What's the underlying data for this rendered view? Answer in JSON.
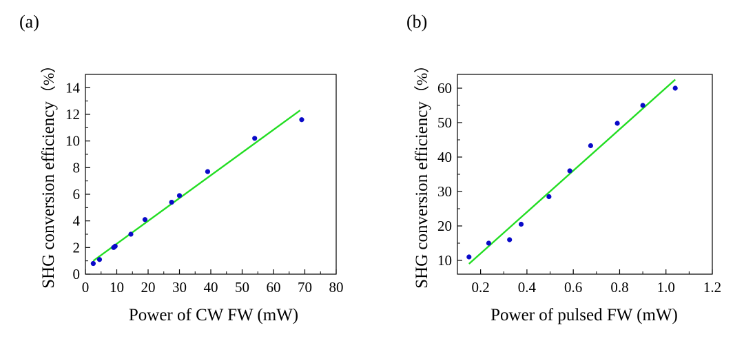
{
  "colors": {
    "marker": "#0a0ac8",
    "fit": "#22dd22",
    "axis": "#000000"
  },
  "chart_data": [
    {
      "id": "a",
      "type": "scatter",
      "panel_label": "(a)",
      "xlabel": "Power of CW FW (mW)",
      "ylabel": "SHG conversion efficiency",
      "ylabel_unit": "（%）",
      "xlim": [
        0,
        80
      ],
      "ylim": [
        0,
        15
      ],
      "xticks": [
        0,
        10,
        20,
        30,
        40,
        50,
        60,
        70,
        80
      ],
      "yticks": [
        0,
        2,
        4,
        6,
        8,
        10,
        12,
        14
      ],
      "xtick_labels": [
        "0",
        "10",
        "20",
        "30",
        "40",
        "50",
        "60",
        "70",
        "80"
      ],
      "ytick_labels": [
        "0",
        "2",
        "4",
        "6",
        "8",
        "10",
        "12",
        "14"
      ],
      "grid": false,
      "series": [
        {
          "kind": "scatter",
          "x": [
            2.5,
            4.5,
            9,
            9.5,
            14.5,
            19,
            27.5,
            30,
            39,
            54,
            69
          ],
          "y": [
            0.8,
            1.1,
            2.0,
            2.1,
            3.0,
            4.1,
            5.4,
            5.9,
            7.7,
            10.2,
            11.6
          ]
        },
        {
          "kind": "line",
          "x": [
            2.5,
            68.5
          ],
          "y": [
            1.0,
            12.3
          ]
        }
      ]
    },
    {
      "id": "b",
      "type": "scatter",
      "panel_label": "(b)",
      "xlabel": "Power of pulsed FW (mW)",
      "ylabel": "SHG conversion efficiency",
      "ylabel_unit": "（%）",
      "xlim": [
        0.1,
        1.2
      ],
      "ylim": [
        6,
        64
      ],
      "xticks": [
        0.2,
        0.4,
        0.6,
        0.8,
        1.0,
        1.2
      ],
      "yticks": [
        10,
        20,
        30,
        40,
        50,
        60
      ],
      "xtick_labels": [
        "0.2",
        "0.4",
        "0.6",
        "0.8",
        "1.0",
        "1.2"
      ],
      "ytick_labels": [
        "10",
        "20",
        "30",
        "40",
        "50",
        "60"
      ],
      "grid": false,
      "series": [
        {
          "kind": "scatter",
          "x": [
            0.15,
            0.235,
            0.325,
            0.375,
            0.495,
            0.585,
            0.675,
            0.79,
            0.9,
            1.04
          ],
          "y": [
            11,
            15,
            16,
            20.5,
            28.5,
            36,
            43.3,
            49.8,
            55,
            60
          ]
        },
        {
          "kind": "line",
          "x": [
            0.15,
            1.04
          ],
          "y": [
            9,
            62.5
          ]
        }
      ]
    }
  ]
}
